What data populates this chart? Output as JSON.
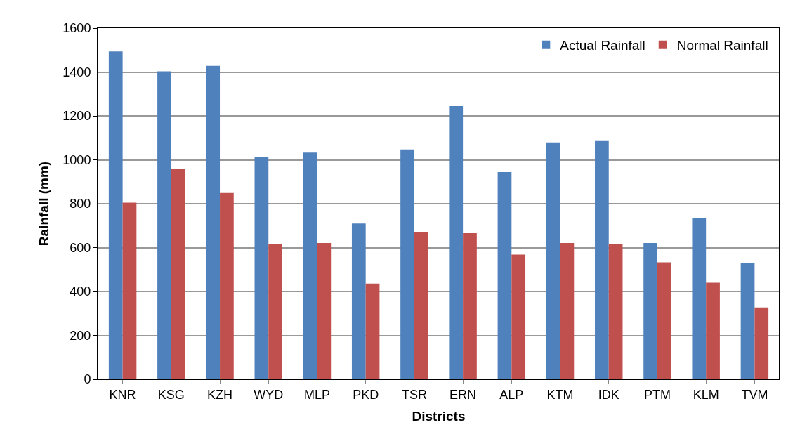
{
  "chart_data": {
    "type": "bar",
    "xlabel": "Districts",
    "ylabel": "Rainfall (mm)",
    "categories": [
      "KNR",
      "KSG",
      "KZH",
      "WYD",
      "MLP",
      "PKD",
      "TSR",
      "ERN",
      "ALP",
      "KTM",
      "IDK",
      "PTM",
      "KLM",
      "TVM"
    ],
    "series": [
      {
        "name": "Actual Rainfall",
        "color": "#4f81bd",
        "values": [
          1494,
          1403,
          1428,
          1014,
          1033,
          710,
          1047,
          1245,
          944,
          1079,
          1086,
          621,
          735,
          529
        ]
      },
      {
        "name": "Normal Rainfall",
        "color": "#c0504d",
        "values": [
          805,
          957,
          849,
          616,
          621,
          436,
          672,
          666,
          568,
          621,
          618,
          533,
          440,
          327
        ]
      }
    ],
    "ylim": [
      0,
      1600
    ],
    "yticks": [
      0,
      200,
      400,
      600,
      800,
      1000,
      1200,
      1400,
      1600
    ],
    "grid": "y",
    "legend": "top right"
  }
}
